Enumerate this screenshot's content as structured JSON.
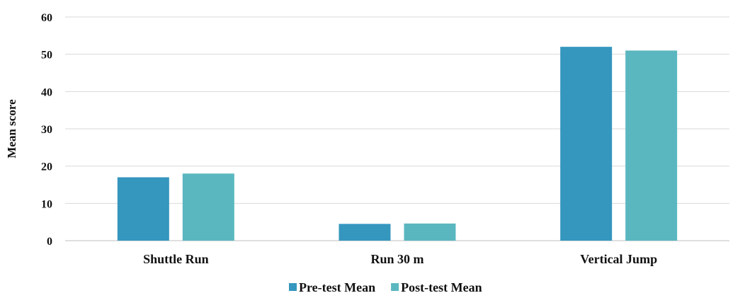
{
  "chart_data": {
    "type": "bar",
    "title": "",
    "xlabel": "",
    "ylabel": "Mean score",
    "ylim": [
      0,
      60
    ],
    "yticks": [
      0,
      10,
      20,
      30,
      40,
      50,
      60
    ],
    "grid": true,
    "legend": "bottom",
    "categories": [
      "Shuttle Run",
      "Run 30 m",
      "Vertical Jump"
    ],
    "series": [
      {
        "name": "Pre-test Mean",
        "color": "#3596be",
        "values": [
          17,
          4.5,
          52
        ]
      },
      {
        "name": "Post-test Mean",
        "color": "#5ab7c0",
        "values": [
          18,
          4.6,
          51
        ]
      }
    ]
  }
}
